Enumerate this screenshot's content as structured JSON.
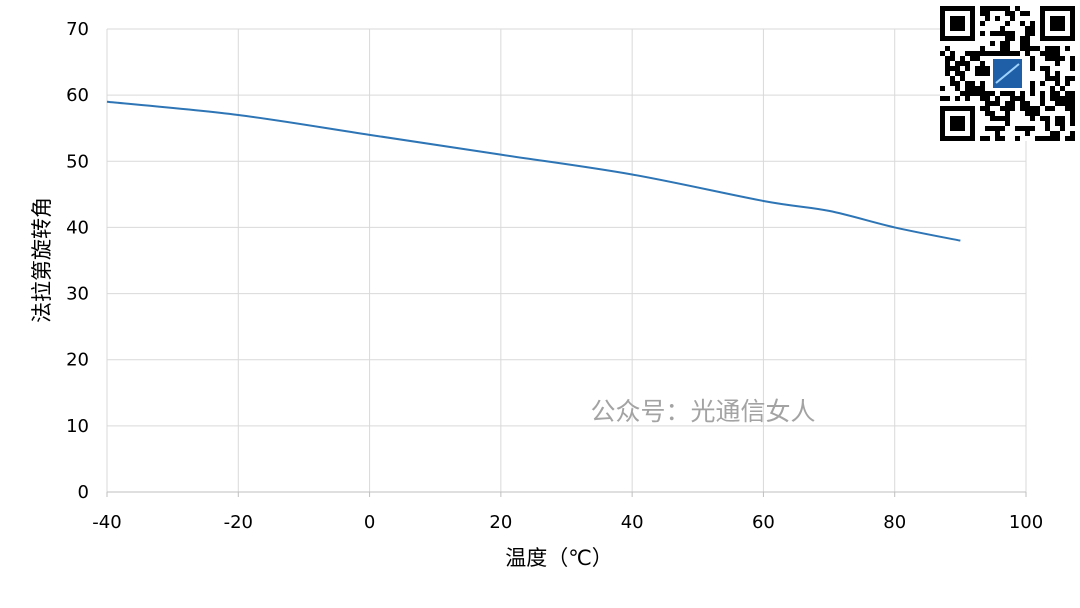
{
  "chart_data": {
    "type": "line",
    "title": "",
    "xlabel": "温度（℃）",
    "ylabel": "法拉第旋转角",
    "xlim": [
      -40,
      100
    ],
    "ylim": [
      0,
      70
    ],
    "x_ticks": [
      "-40",
      "-20",
      "0",
      "20",
      "40",
      "60",
      "80",
      "100"
    ],
    "y_ticks": [
      "0",
      "10",
      "20",
      "30",
      "40",
      "50",
      "60",
      "70"
    ],
    "grid": true,
    "legend": "none",
    "series": [
      {
        "color": "#2e75b6",
        "x": [
          -40,
          -20,
          0,
          20,
          40,
          60,
          70,
          80,
          90
        ],
        "values": [
          59,
          57,
          54,
          51,
          48,
          44,
          42.5,
          40,
          38
        ]
      }
    ]
  },
  "watermark": "公众号：光通信女人",
  "qr_code": {
    "icon": "qr-code-icon",
    "accent": "#1f5fa8"
  }
}
